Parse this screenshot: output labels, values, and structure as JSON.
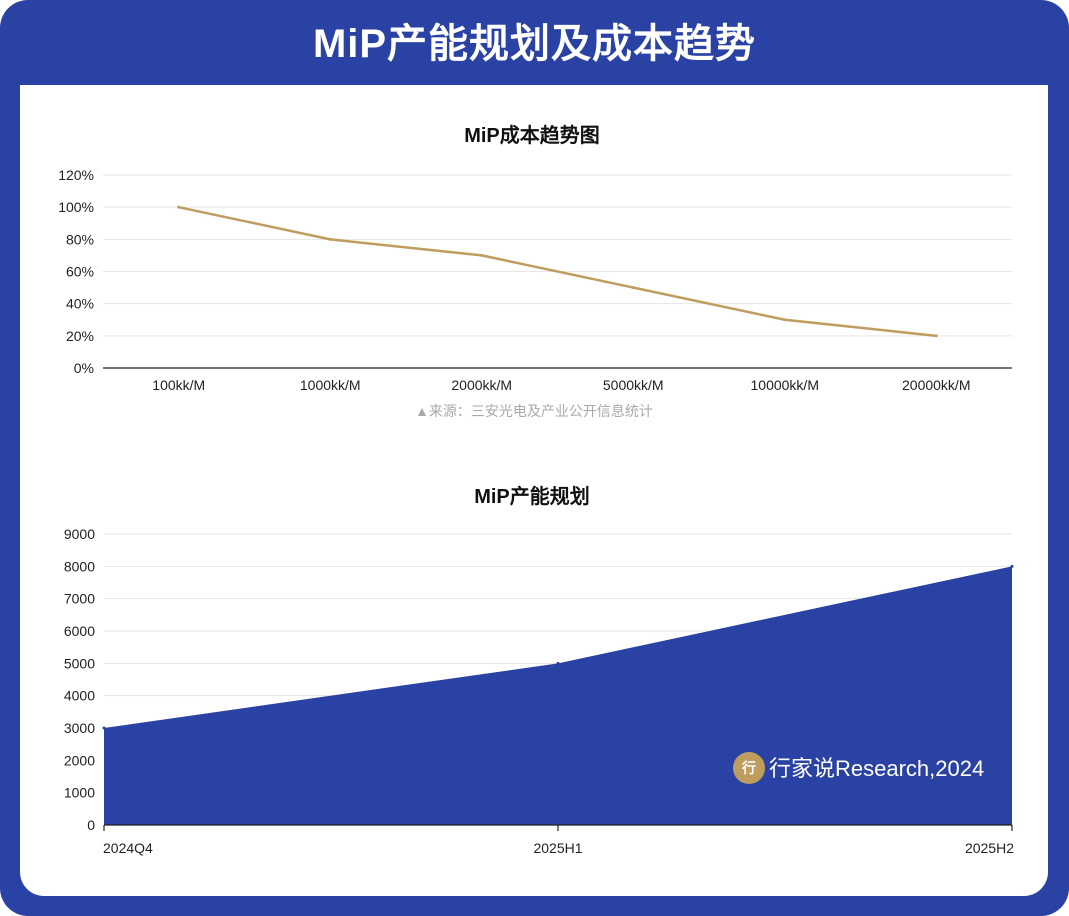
{
  "header": {
    "title": "MiP产能规划及成本趋势"
  },
  "colors": {
    "frame": "#2a42a3",
    "line": "#bf9d5e",
    "area": "#2a42a3",
    "grid": "#e6e6e6",
    "watermark_badge": "#bf9d5e"
  },
  "source_note": "▲来源：三安光电及产业公开信息统计",
  "watermark": {
    "icon": "行",
    "text": "行家说Research,2024"
  },
  "chart_data": [
    {
      "type": "line",
      "title": "MiP成本趋势图",
      "categories": [
        "100kk/M",
        "1000kk/M",
        "2000kk/M",
        "5000kk/M",
        "10000kk/M",
        "20000kk/M"
      ],
      "values": [
        100,
        80,
        70,
        50,
        30,
        20
      ],
      "ylim": [
        0,
        120
      ],
      "yticks": [
        0,
        20,
        40,
        60,
        80,
        100,
        120
      ],
      "ytick_labels": [
        "0%",
        "20%",
        "40%",
        "60%",
        "80%",
        "100%",
        "120%"
      ],
      "grid": true
    },
    {
      "type": "area",
      "title": "MiP产能规划",
      "categories": [
        "2024Q4",
        "2025H1",
        "2025H2"
      ],
      "values": [
        3000,
        5000,
        8000
      ],
      "ylim": [
        0,
        9000
      ],
      "yticks": [
        0,
        1000,
        2000,
        3000,
        4000,
        5000,
        6000,
        7000,
        8000,
        9000
      ],
      "ytick_labels": [
        "0",
        "1000",
        "2000",
        "3000",
        "4000",
        "5000",
        "6000",
        "7000",
        "8000",
        "9000"
      ],
      "grid": true
    }
  ]
}
